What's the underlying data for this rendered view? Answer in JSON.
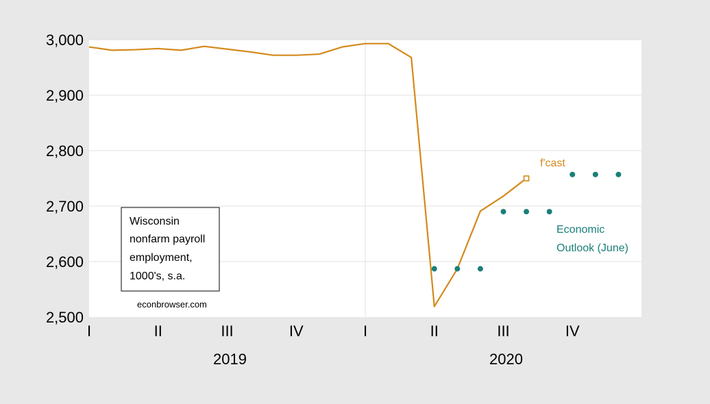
{
  "chart_data": {
    "type": "line",
    "title": "",
    "ylim": [
      2500,
      3000
    ],
    "y_ticks": [
      2500,
      2600,
      2700,
      2800,
      2900,
      3000
    ],
    "y_tick_labels": [
      "2,500",
      "2,600",
      "2,700",
      "2,800",
      "2,900",
      "3,000"
    ],
    "x_period_labels": [
      "I",
      "II",
      "III",
      "IV",
      "I",
      "II",
      "III",
      "IV"
    ],
    "x_year_labels": [
      "2019",
      "2020"
    ],
    "grid": true,
    "series": [
      {
        "color": "#d4891a",
        "marker": "line",
        "values": [
          2987,
          2981,
          2982,
          2984,
          2981,
          2988,
          2983,
          2978,
          2972,
          2972,
          2974,
          2987,
          2993,
          2993,
          2968,
          2519,
          2587,
          2691,
          2718,
          2750
        ]
      },
      {
        "color": "#d4891a",
        "marker": "open-square",
        "label": "f'cast",
        "month_index": 19,
        "value": 2750
      },
      {
        "color": "#1a7f7a",
        "marker": "dot",
        "label_lines": [
          "Economic",
          "Outlook (June)"
        ],
        "start_month_index": 15,
        "values": [
          2587,
          2587,
          2587,
          2690,
          2690,
          2690,
          2757,
          2757,
          2757
        ]
      }
    ],
    "annotation_box_lines": [
      "Wisconsin",
      "nonfarm payroll",
      "employment,",
      "1000's, s.a."
    ],
    "source": "econbrowser.com"
  }
}
